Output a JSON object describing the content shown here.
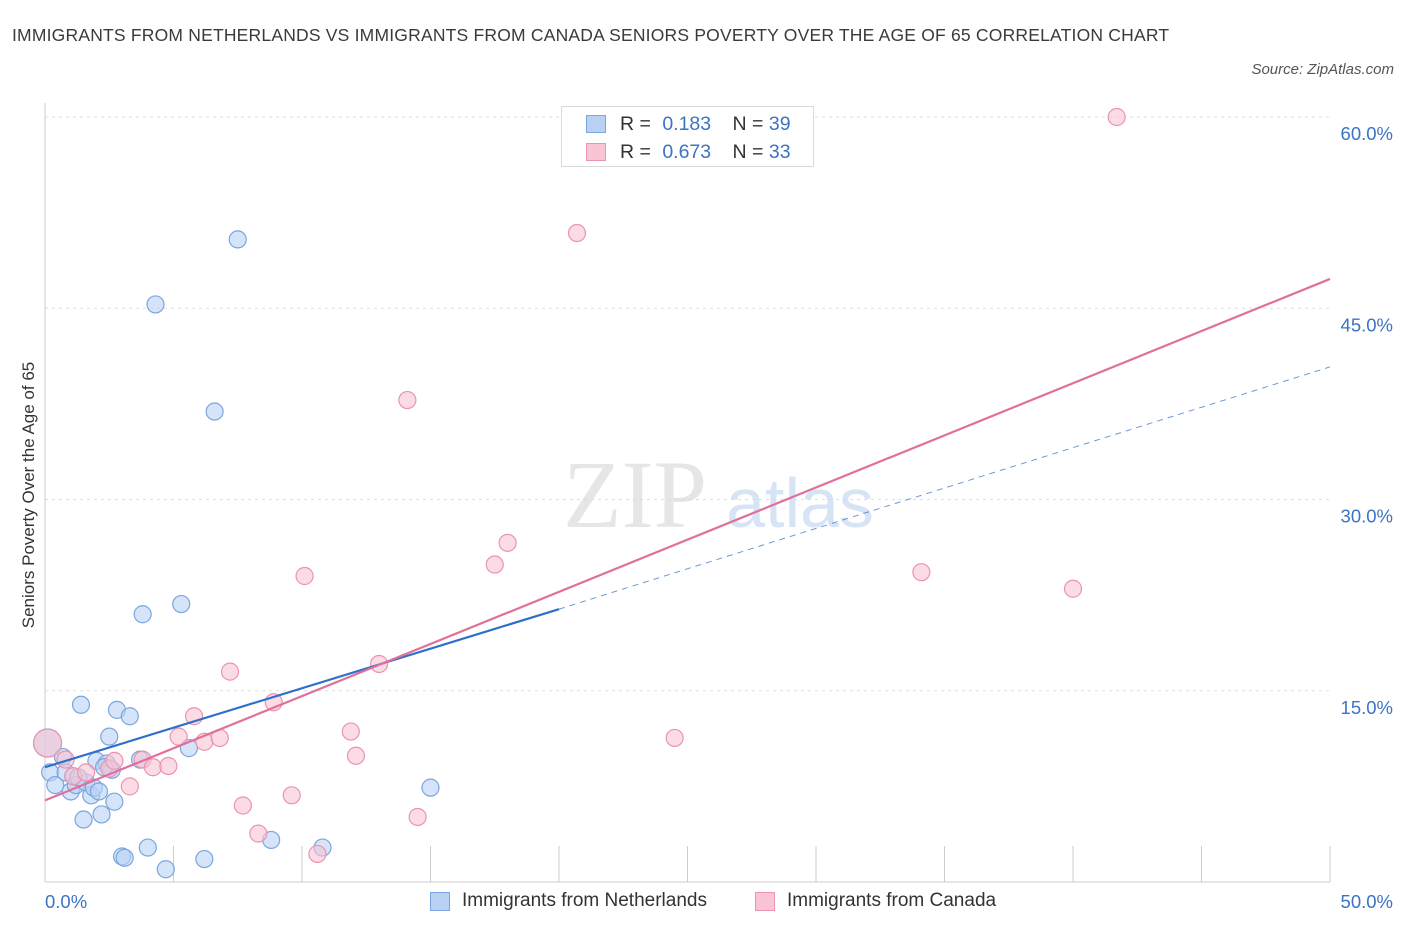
{
  "header": {
    "title": "IMMIGRANTS FROM NETHERLANDS VS IMMIGRANTS FROM CANADA SENIORS POVERTY OVER THE AGE OF 65 CORRELATION CHART",
    "source": "Source: ZipAtlas.com"
  },
  "watermark": {
    "zip": "ZIP",
    "atlas": "atlas"
  },
  "legend_top": {
    "r_label": "R =",
    "n_label": "N =",
    "rows": [
      {
        "r": "0.183",
        "n": "39"
      },
      {
        "r": "0.673",
        "n": "33"
      }
    ]
  },
  "colors": {
    "netherlands_fill": "#b9d2f3",
    "netherlands_stroke": "#7aa6e0",
    "netherlands_line": "#2f6fcc",
    "canada_fill": "#f9c4d4",
    "canada_stroke": "#eb93b0",
    "canada_line": "#e0709a",
    "tick_label": "#3c74c4",
    "grid": "#dddddd"
  },
  "chart_data": {
    "type": "scatter",
    "title": "IMMIGRANTS FROM NETHERLANDS VS IMMIGRANTS FROM CANADA SENIORS POVERTY OVER THE AGE OF 65 CORRELATION CHART",
    "xlabel": "",
    "ylabel": "Seniors Poverty Over the Age of 65",
    "xlim": [
      0,
      50
    ],
    "ylim": [
      0,
      60
    ],
    "x_tick_labels": [
      {
        "value": 0,
        "label": "0.0%"
      },
      {
        "value": 50,
        "label": "50.0%"
      }
    ],
    "y_tick_labels": [
      {
        "value": 15,
        "label": "15.0%"
      },
      {
        "value": 30,
        "label": "30.0%"
      },
      {
        "value": 45,
        "label": "45.0%"
      },
      {
        "value": 60,
        "label": "60.0%"
      }
    ],
    "grid": true,
    "legend": "bottom-center",
    "series": [
      {
        "name": "Immigrants from Netherlands",
        "R": 0.183,
        "N": 39,
        "points": [
          [
            0.1,
            10.9
          ],
          [
            0.2,
            8.6
          ],
          [
            0.4,
            7.6
          ],
          [
            0.7,
            9.8
          ],
          [
            0.8,
            8.6
          ],
          [
            1.0,
            7.1
          ],
          [
            1.1,
            8.3
          ],
          [
            1.2,
            7.6
          ],
          [
            1.4,
            13.9
          ],
          [
            1.5,
            4.9
          ],
          [
            1.6,
            7.8
          ],
          [
            1.8,
            6.8
          ],
          [
            1.9,
            7.4
          ],
          [
            2.0,
            9.5
          ],
          [
            2.1,
            7.1
          ],
          [
            2.2,
            5.3
          ],
          [
            2.4,
            9.3
          ],
          [
            2.5,
            11.4
          ],
          [
            2.6,
            8.8
          ],
          [
            2.7,
            6.3
          ],
          [
            2.8,
            13.5
          ],
          [
            3.0,
            2.0
          ],
          [
            3.1,
            1.9
          ],
          [
            3.3,
            13.0
          ],
          [
            3.7,
            9.6
          ],
          [
            3.8,
            21.0
          ],
          [
            4.0,
            2.7
          ],
          [
            4.3,
            45.3
          ],
          [
            4.7,
            1.0
          ],
          [
            5.3,
            21.8
          ],
          [
            5.6,
            10.5
          ],
          [
            6.2,
            1.8
          ],
          [
            6.6,
            36.9
          ],
          [
            7.5,
            50.4
          ],
          [
            8.8,
            3.3
          ],
          [
            10.8,
            2.7
          ],
          [
            15.0,
            7.4
          ],
          [
            1.3,
            8.2
          ],
          [
            2.3,
            9.0
          ]
        ],
        "trend": {
          "x0": 0,
          "y0": 9.0,
          "x1": 20,
          "y1": 21.4,
          "dashed_to_x": 50,
          "dashed_to_y": 40.4
        }
      },
      {
        "name": "Immigrants from Canada",
        "R": 0.673,
        "N": 33,
        "points": [
          [
            0.1,
            10.9
          ],
          [
            0.8,
            9.6
          ],
          [
            1.1,
            8.3
          ],
          [
            1.6,
            8.6
          ],
          [
            2.5,
            8.9
          ],
          [
            2.7,
            9.5
          ],
          [
            3.3,
            7.5
          ],
          [
            3.8,
            9.6
          ],
          [
            4.2,
            9.0
          ],
          [
            4.8,
            9.1
          ],
          [
            5.2,
            11.4
          ],
          [
            5.8,
            13.0
          ],
          [
            6.2,
            11.0
          ],
          [
            6.8,
            11.3
          ],
          [
            7.2,
            16.5
          ],
          [
            7.7,
            6.0
          ],
          [
            8.3,
            3.8
          ],
          [
            8.9,
            14.1
          ],
          [
            9.6,
            6.8
          ],
          [
            10.1,
            24.0
          ],
          [
            10.6,
            2.2
          ],
          [
            11.9,
            11.8
          ],
          [
            12.1,
            9.9
          ],
          [
            13.0,
            17.1
          ],
          [
            14.1,
            37.8
          ],
          [
            14.5,
            5.1
          ],
          [
            17.5,
            24.9
          ],
          [
            18.0,
            26.6
          ],
          [
            20.7,
            50.9
          ],
          [
            24.5,
            11.3
          ],
          [
            34.1,
            24.3
          ],
          [
            40.0,
            23.0
          ],
          [
            41.7,
            60.0
          ]
        ],
        "trend": {
          "x0": 0,
          "y0": 6.4,
          "x1": 50,
          "y1": 47.3
        }
      }
    ]
  },
  "legend_bottom": [
    {
      "label": "Immigrants from Netherlands"
    },
    {
      "label": "Immigrants from Canada"
    }
  ]
}
